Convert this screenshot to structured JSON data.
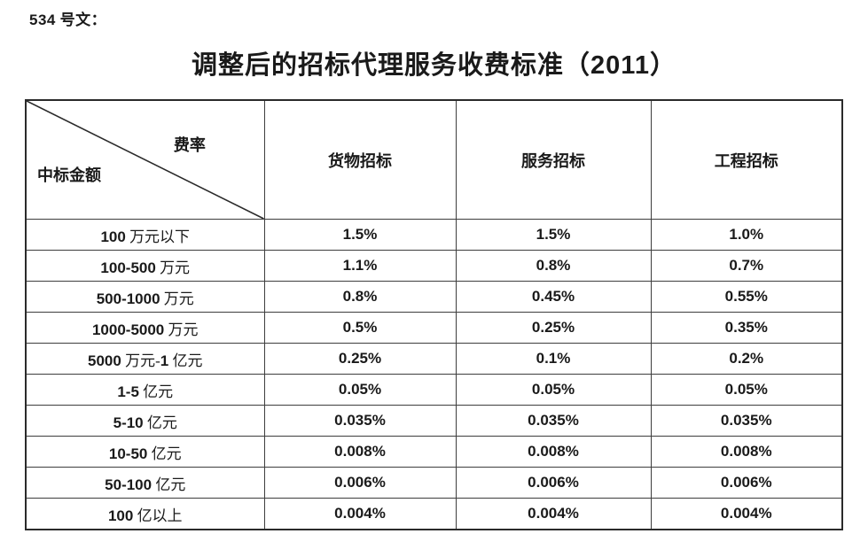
{
  "page": {
    "doc_label": "534 号文：",
    "title": "调整后的招标代理服务收费标准（2011）"
  },
  "table": {
    "corner": {
      "top_right_label": "费率",
      "bottom_left_label": "中标金额"
    },
    "columns": [
      "货物招标",
      "服务招标",
      "工程招标"
    ],
    "rows": [
      {
        "label": "100 万元以下",
        "values": [
          "1.5%",
          "1.5%",
          "1.0%"
        ]
      },
      {
        "label": "100-500 万元",
        "values": [
          "1.1%",
          "0.8%",
          "0.7%"
        ]
      },
      {
        "label": "500-1000 万元",
        "values": [
          "0.8%",
          "0.45%",
          "0.55%"
        ]
      },
      {
        "label": "1000-5000 万元",
        "values": [
          "0.5%",
          "0.25%",
          "0.35%"
        ]
      },
      {
        "label": "5000 万元-1 亿元",
        "values": [
          "0.25%",
          "0.1%",
          "0.2%"
        ]
      },
      {
        "label": "1-5 亿元",
        "values": [
          "0.05%",
          "0.05%",
          "0.05%"
        ]
      },
      {
        "label": "5-10 亿元",
        "values": [
          "0.035%",
          "0.035%",
          "0.035%"
        ]
      },
      {
        "label": "10-50 亿元",
        "values": [
          "0.008%",
          "0.008%",
          "0.008%"
        ]
      },
      {
        "label": "50-100 亿元",
        "values": [
          "0.006%",
          "0.006%",
          "0.006%"
        ]
      },
      {
        "label": "100 亿以上",
        "values": [
          "0.004%",
          "0.004%",
          "0.004%"
        ]
      }
    ]
  },
  "colors": {
    "text": "#1a1a1a",
    "border": "#3d3d3d",
    "background": "#ffffff"
  }
}
